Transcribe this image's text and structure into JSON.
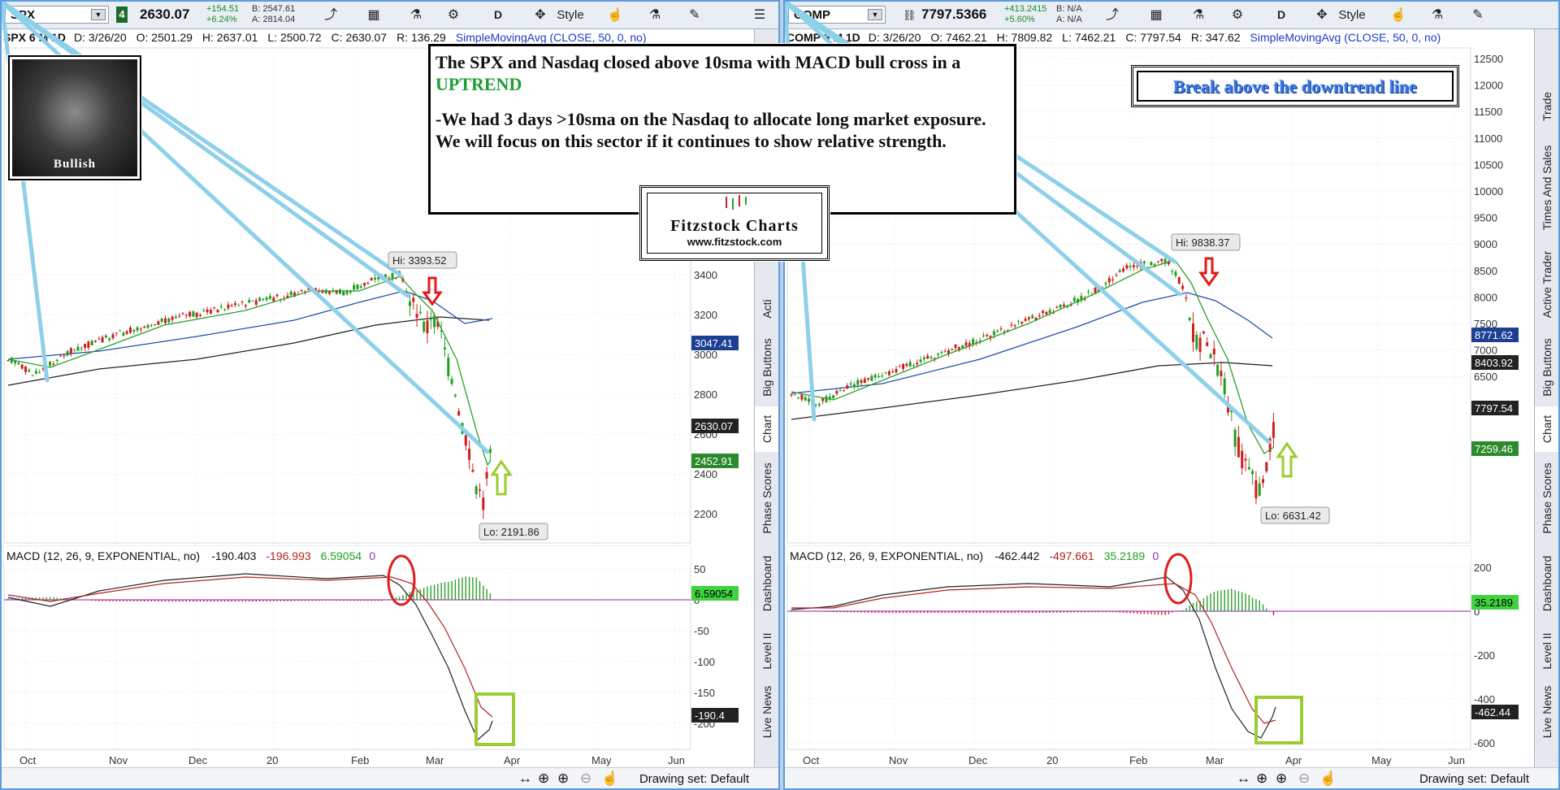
{
  "left": {
    "symbol": "SPX",
    "link_num": "4",
    "price": "2630.07",
    "change_abs": "+154.51",
    "change_pct": "+6.24%",
    "bid": "B: 2547.61",
    "ask": "A: 2814.04",
    "timeframe_label": "SPX 6 M 1D",
    "date": "D: 3/26/20",
    "open": "O: 2501.29",
    "high": "H: 2637.01",
    "low": "L: 2500.72",
    "close": "C: 2630.07",
    "range": "R: 136.29",
    "study": "SimpleMovingAvg (CLOSE, 50, 0, no)",
    "hi_label": "Hi: 3393.52",
    "lo_label": "Lo: 2191.86",
    "macd_label": "MACD (12, 26, 9, EXPONENTIAL, no)",
    "macd_value": "-190.403",
    "macd_avg": "-196.993",
    "macd_diff": "6.59054",
    "macd_zero": "0",
    "price_badges": [
      {
        "text": "3047.41",
        "color": "#1c3f94"
      },
      {
        "text": "2630.07",
        "color": "#222222"
      },
      {
        "text": "2452.91",
        "color": "#2b8a2b"
      }
    ],
    "macd_badges": [
      {
        "text": "6.59054",
        "color": "#3fd33f"
      },
      {
        "text": "-190.4",
        "color": "#222222"
      }
    ],
    "y_ticks": [
      "3400",
      "3200",
      "3000",
      "2800",
      "2600",
      "2400",
      "2200"
    ],
    "macd_ticks": [
      "50",
      "0",
      "-50",
      "-100",
      "-150",
      "-200"
    ],
    "x_labels": [
      "Oct",
      "Nov",
      "Dec",
      "20",
      "Feb",
      "Mar",
      "Apr",
      "May",
      "Jun"
    ]
  },
  "right": {
    "symbol": "COMP",
    "price": "7797.5366",
    "change_abs": "+413.2415",
    "change_pct": "+5.60%",
    "bid": "B: N/A",
    "ask": "A: N/A",
    "timeframe_label": "COMP 6 M 1D",
    "date": "D: 3/26/20",
    "open": "O: 7462.21",
    "high": "H: 7809.82",
    "low": "L: 7462.21",
    "close": "C: 7797.54",
    "range": "R: 347.62",
    "study": "SimpleMovingAvg (CLOSE, 50, 0, no)",
    "hi_label": "Hi: 9838.37",
    "lo_label": "Lo: 6631.42",
    "macd_label": "MACD (12, 26, 9, EXPONENTIAL, no)",
    "macd_value": "-462.442",
    "macd_avg": "-497.661",
    "macd_diff": "35.2189",
    "macd_zero": "0",
    "price_badges": [
      {
        "text": "8771.62",
        "color": "#1c3f94"
      },
      {
        "text": "8403.92",
        "color": "#222222"
      },
      {
        "text": "7797.54",
        "color": "#222222"
      },
      {
        "text": "7259.46",
        "color": "#2b8a2b"
      }
    ],
    "macd_badges": [
      {
        "text": "35.2189",
        "color": "#3fd33f"
      },
      {
        "text": "-462.44",
        "color": "#222222"
      }
    ],
    "y_ticks": [
      "12500",
      "12000",
      "11500",
      "11000",
      "10500",
      "10000",
      "9500",
      "9000",
      "8500",
      "8000",
      "7500",
      "7000",
      "6500"
    ],
    "macd_ticks": [
      "200",
      "0",
      "-200",
      "-400",
      "-600"
    ],
    "x_labels": [
      "Oct",
      "Nov",
      "Dec",
      "20",
      "Feb",
      "Mar",
      "Apr",
      "May",
      "Jun"
    ]
  },
  "toolbar": {
    "style_label": "Style",
    "period_label": "D"
  },
  "sidebar_tabs_left": [
    "Live News",
    "Level II",
    "Dashboard",
    "Phase Scores",
    "Chart",
    "Big Buttons",
    "Acti"
  ],
  "sidebar_tabs_right": [
    "Live News",
    "Level II",
    "Dashboard",
    "Phase Scores",
    "Chart",
    "Big Buttons",
    "Active Trader",
    "Times And Sales",
    "Trade"
  ],
  "note": {
    "line1_a": "The SPX and Nasdaq closed above 10sma with MACD bull cross in a ",
    "line1_b": "UPTREND",
    "line2": "-We had 3 days >10sma on the Nasdaq to allocate long market exposure. We will focus on this sector if  it continues to show relative strength."
  },
  "logo": {
    "name": "Fitzstock Charts",
    "url": "www.fitzstock.com"
  },
  "bull_label": "Bullish",
  "breakout_text": "Break above the downtrend line",
  "drawing_set": "Drawing set: Default",
  "colors": {
    "sma50": "#1f4fa8",
    "sma200": "#222222",
    "sma10": "#2aa02a",
    "trend": "#8ed0ea",
    "annot_red": "#e01b1b",
    "annot_green": "#9acd32",
    "macd": "#222222",
    "macd_avg": "#b22222",
    "zero_line": "#b040c0"
  }
}
